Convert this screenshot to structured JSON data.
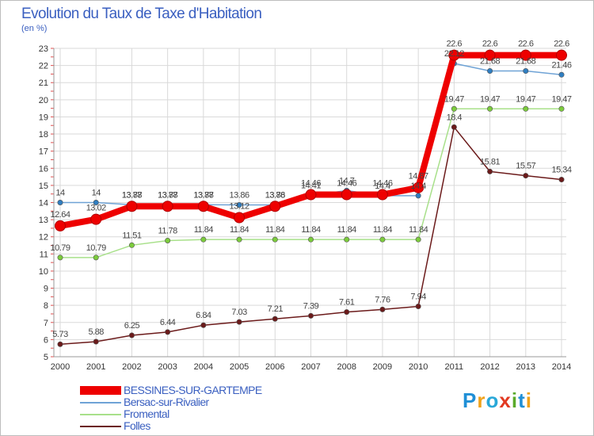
{
  "chart_data": {
    "type": "line",
    "title": "Evolution du Taux de Taxe d'Habitation",
    "subtitle": "(en %)",
    "xlabel": "",
    "ylabel": "",
    "ylim": [
      5,
      23
    ],
    "yticks": [
      5,
      6,
      7,
      8,
      9,
      10,
      11,
      12,
      13,
      14,
      15,
      16,
      17,
      18,
      19,
      20,
      21,
      22,
      23
    ],
    "categories": [
      "2000",
      "2001",
      "2002",
      "2003",
      "2004",
      "2005",
      "2006",
      "2007",
      "2008",
      "2009",
      "2010",
      "2011",
      "2012",
      "2013",
      "2014"
    ],
    "grid": true,
    "legend_position": "bottom-left",
    "series": [
      {
        "name": "Folles",
        "color": "#6b1a1a",
        "marker": "#6b1a1a",
        "values": [
          5.73,
          5.88,
          6.25,
          6.44,
          6.84,
          7.03,
          7.21,
          7.39,
          7.61,
          7.76,
          7.94,
          18.4,
          15.81,
          15.57,
          15.34
        ],
        "labels": [
          "5.73",
          "5.88",
          "6.25",
          "6.44",
          "6.84",
          "7.03",
          "7.21",
          "7.39",
          "7.61",
          "7.76",
          "7.94",
          "18.4",
          "15.81",
          "15.57",
          "15.34"
        ]
      },
      {
        "name": "Fromental",
        "color": "#a8e08a",
        "marker": "#7ccc3c",
        "values": [
          10.79,
          10.79,
          11.51,
          11.78,
          11.84,
          11.84,
          11.84,
          11.84,
          11.84,
          11.84,
          11.84,
          19.47,
          19.47,
          19.47,
          19.47
        ],
        "labels": [
          "10.79",
          "10.79",
          "11.51",
          "11.78",
          "11.84",
          "11.84",
          "11.84",
          "11.84",
          "11.84",
          "11.84",
          "11.84",
          "19.47",
          "19.47",
          "19.47",
          "19.47"
        ]
      },
      {
        "name": "Bersac-sur-Rivalier",
        "color": "#6fa3d6",
        "marker": "#2f7ec1",
        "values": [
          14,
          14,
          13.87,
          13.87,
          13.87,
          13.86,
          13.86,
          14.41,
          14.7,
          14.4,
          14.4,
          22.12,
          21.68,
          21.68,
          21.46
        ],
        "labels": [
          "14",
          "14",
          "13.87",
          "13.87",
          "13.87",
          "13.86",
          "13.86",
          "14.41",
          "14.7",
          "14.4",
          "14.4",
          "22.12",
          "21.68",
          "21.68",
          "21.46"
        ]
      },
      {
        "name": "BESSINES-SUR-GARTEMPE",
        "color": "#ee0000",
        "marker": "#ee0000",
        "values": [
          12.64,
          13.02,
          13.78,
          13.78,
          13.78,
          13.12,
          13.78,
          14.46,
          14.46,
          14.46,
          14.87,
          22.6,
          22.6,
          22.6,
          22.6
        ],
        "labels": [
          "12.64",
          "13.02",
          "13.78",
          "13.78",
          "13.78",
          "13.12",
          "13.78",
          "14.46",
          "14.46",
          "14.46",
          "14.87",
          "22.6",
          "22.6",
          "22.6",
          "22.6"
        ]
      }
    ]
  },
  "legend": {
    "items": [
      {
        "label": "BESSINES-SUR-GARTEMPE",
        "color": "#ee0000"
      },
      {
        "label": "Bersac-sur-Rivalier",
        "color": "#6fa3d6"
      },
      {
        "label": "Fromental",
        "color": "#a8e08a"
      },
      {
        "label": "Folles",
        "color": "#6b1a1a"
      }
    ],
    "label_color": "#3a5fc0"
  },
  "logo": {
    "text": "Proxiti",
    "letters": [
      {
        "ch": "P",
        "color": "#1f8fd6"
      },
      {
        "ch": "r",
        "color": "#f0a21a"
      },
      {
        "ch": "o",
        "color": "#2aa8d8"
      },
      {
        "ch": "x",
        "color": "#e23a22"
      },
      {
        "ch": "i",
        "color": "#5aaa2a"
      },
      {
        "ch": "t",
        "color": "#1f8fd6"
      },
      {
        "ch": "i",
        "color": "#f0a21a"
      }
    ]
  }
}
